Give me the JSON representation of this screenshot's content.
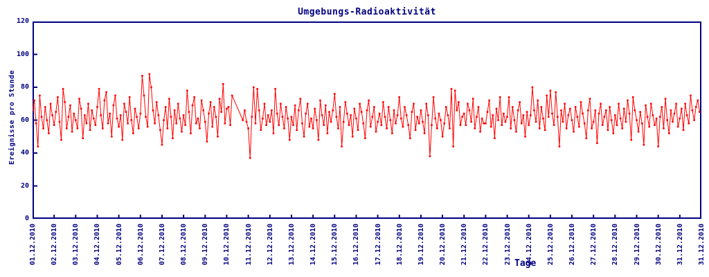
{
  "chart_data": {
    "type": "line",
    "title": "Umgebungs-Radioaktivität",
    "xlabel": "Tage",
    "ylabel": "Ereignisse pro Stunde",
    "ylim": [
      0,
      120
    ],
    "yticks": [
      0,
      20,
      40,
      60,
      80,
      100,
      120
    ],
    "x_range_hours": 744,
    "sample_interval_hours": 2,
    "grid": "off",
    "legend": "none",
    "series_color": "#ff0000",
    "axis_color": "#000080",
    "background_color": "#ffffff",
    "x_tick_labels": [
      "01.12.2010",
      "02.12.2010",
      "03.12.2010",
      "04.12.2010",
      "05.12.2010",
      "06.12.2010",
      "07.12.2010",
      "08.12.2010",
      "09.12.2010",
      "10.12.2010",
      "11.12.2010",
      "12.12.2010",
      "13.12.2010",
      "14.12.2010",
      "15.12.2010",
      "16.12.2010",
      "17.12.2010",
      "18.12.2010",
      "19.12.2010",
      "20.12.2010",
      "21.12.2010",
      "22.12.2010",
      "23.12.2010",
      "24.12.2010",
      "25.12.2010",
      "26.12.2010",
      "27.12.2010",
      "28.12.2010",
      "29.12.2010",
      "30.12.2010",
      "31.12.2010",
      "31.12.2010"
    ],
    "values": [
      66,
      72,
      58,
      44,
      75,
      62,
      55,
      68,
      60,
      52,
      70,
      63,
      57,
      65,
      74,
      59,
      48,
      79,
      71,
      55,
      62,
      69,
      53,
      64,
      60,
      55,
      73,
      67,
      49,
      63,
      58,
      70,
      54,
      66,
      61,
      57,
      68,
      79,
      63,
      55,
      72,
      77,
      58,
      64,
      50,
      69,
      75,
      61,
      56,
      63,
      48,
      70,
      65,
      58,
      74,
      60,
      52,
      67,
      62,
      55,
      64,
      87,
      75,
      62,
      56,
      88,
      80,
      66,
      58,
      71,
      63,
      54,
      45,
      60,
      68,
      55,
      73,
      62,
      49,
      66,
      58,
      70,
      61,
      53,
      63,
      57,
      78,
      65,
      52,
      69,
      74,
      58,
      61,
      55,
      72,
      66,
      59,
      47,
      64,
      71,
      56,
      68,
      62,
      50,
      73,
      65,
      82,
      58,
      67,
      68,
      57,
      75,
      null,
      null,
      null,
      null,
      null,
      60,
      66,
      59,
      55,
      37,
      62,
      80,
      58,
      79,
      66,
      54,
      61,
      70,
      57,
      63,
      59,
      66,
      52,
      79,
      64,
      57,
      70,
      62,
      55,
      68,
      61,
      48,
      62,
      57,
      69,
      54,
      66,
      73,
      58,
      50,
      64,
      70,
      56,
      61,
      55,
      67,
      60,
      48,
      72,
      63,
      57,
      69,
      52,
      65,
      59,
      66,
      76,
      62,
      55,
      68,
      44,
      59,
      71,
      64,
      57,
      63,
      50,
      67,
      61,
      54,
      70,
      65,
      58,
      49,
      66,
      72,
      56,
      62,
      68,
      53,
      59,
      64,
      57,
      71,
      62,
      55,
      68,
      60,
      52,
      66,
      58,
      63,
      74,
      61,
      56,
      68,
      63,
      57,
      49,
      65,
      70,
      54,
      62,
      58,
      66,
      59,
      52,
      70,
      63,
      38,
      57,
      74,
      61,
      55,
      64,
      60,
      50,
      58,
      68,
      63,
      55,
      79,
      44,
      78,
      66,
      71,
      57,
      62,
      64,
      57,
      70,
      66,
      59,
      73,
      55,
      62,
      68,
      53,
      61,
      58,
      58,
      65,
      72,
      56,
      63,
      49,
      67,
      60,
      74,
      57,
      64,
      59,
      62,
      74,
      55,
      68,
      60,
      53,
      66,
      71,
      58,
      63,
      50,
      65,
      57,
      63,
      80,
      66,
      59,
      72,
      55,
      68,
      61,
      54,
      75,
      62,
      78,
      64,
      57,
      77,
      62,
      44,
      66,
      59,
      70,
      55,
      63,
      67,
      60,
      53,
      68,
      62,
      56,
      71,
      64,
      58,
      49,
      66,
      73,
      55,
      59,
      66,
      46,
      64,
      70,
      57,
      62,
      66,
      54,
      68,
      60,
      52,
      63,
      57,
      70,
      61,
      55,
      67,
      59,
      72,
      64,
      48,
      74,
      66,
      60,
      53,
      65,
      58,
      45,
      69,
      62,
      56,
      70,
      63,
      57,
      61,
      44,
      62,
      68,
      55,
      73,
      60,
      52,
      66,
      59,
      64,
      70,
      56,
      61,
      67,
      54,
      70,
      63,
      58,
      75,
      66,
      60,
      68,
      72,
      65
    ]
  }
}
